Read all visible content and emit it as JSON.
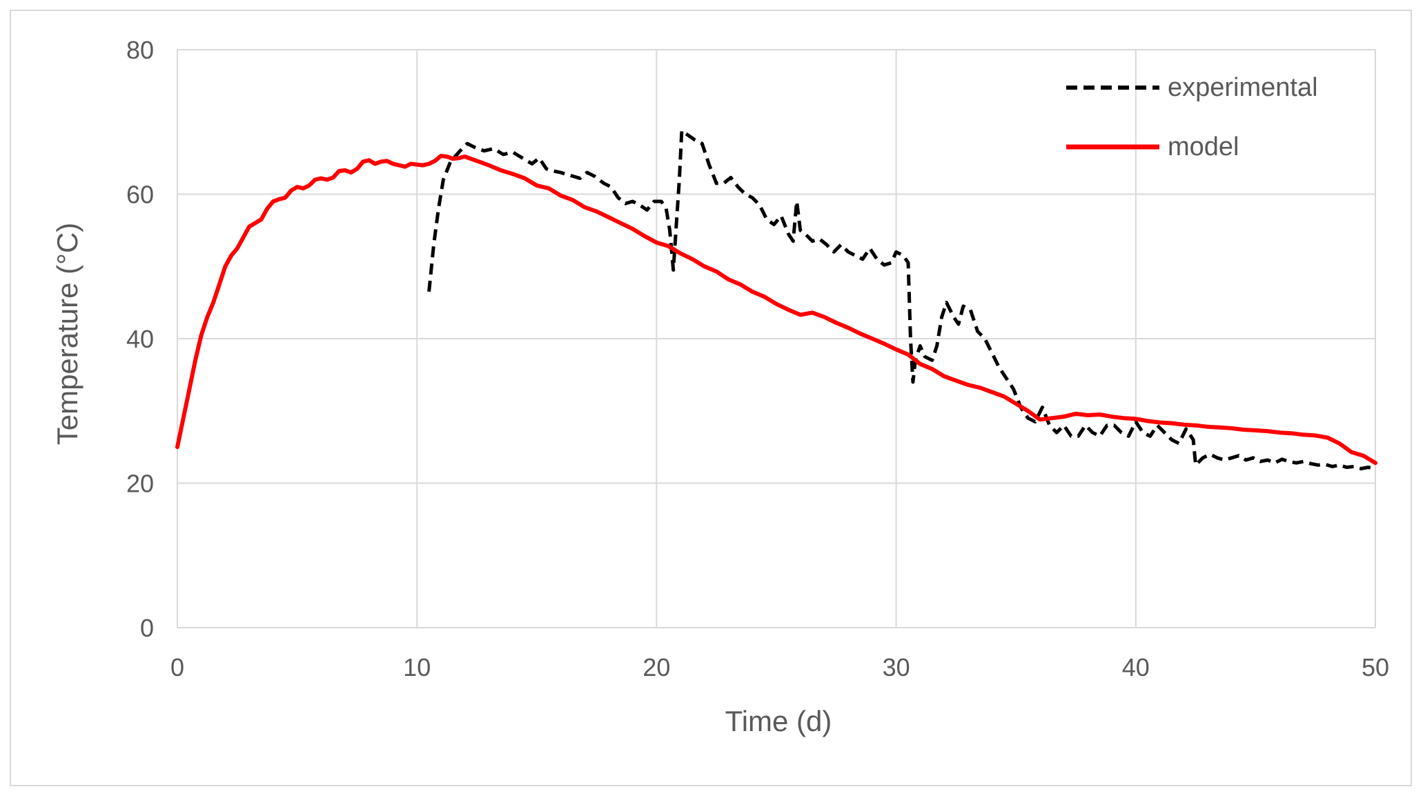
{
  "chart_data": {
    "type": "line",
    "title": "",
    "xlabel": "Time (d)",
    "ylabel": "Temperature (°C)",
    "xlim": [
      0,
      50
    ],
    "ylim": [
      0,
      80
    ],
    "xticks": [
      "0",
      "10",
      "20",
      "30",
      "40",
      "50"
    ],
    "yticks": [
      "0",
      "20",
      "40",
      "60",
      "80"
    ],
    "grid": true,
    "legend_position": "top-right",
    "series": [
      {
        "name": "experimental",
        "color": "#000000",
        "style": "dashed",
        "points": [
          [
            10.5,
            46.5
          ],
          [
            10.7,
            53
          ],
          [
            10.9,
            58
          ],
          [
            11.1,
            62
          ],
          [
            11.4,
            64.5
          ],
          [
            11.8,
            66
          ],
          [
            12.1,
            67
          ],
          [
            12.4,
            66.5
          ],
          [
            12.8,
            66
          ],
          [
            13.2,
            66.3
          ],
          [
            13.6,
            65.5
          ],
          [
            14.0,
            65.8
          ],
          [
            14.4,
            65
          ],
          [
            14.8,
            64.2
          ],
          [
            15.1,
            65
          ],
          [
            15.4,
            63.5
          ],
          [
            15.7,
            63.2
          ],
          [
            16.0,
            63
          ],
          [
            16.4,
            62.6
          ],
          [
            16.8,
            62.2
          ],
          [
            17.1,
            63
          ],
          [
            17.4,
            62.5
          ],
          [
            17.8,
            61.5
          ],
          [
            18.1,
            61
          ],
          [
            18.4,
            59.5
          ],
          [
            18.7,
            58.7
          ],
          [
            19.0,
            59
          ],
          [
            19.3,
            58.5
          ],
          [
            19.6,
            57.8
          ],
          [
            19.9,
            59
          ],
          [
            20.2,
            59
          ],
          [
            20.4,
            58
          ],
          [
            20.55,
            55
          ],
          [
            20.7,
            49.5
          ],
          [
            20.85,
            57
          ],
          [
            20.95,
            62
          ],
          [
            21.05,
            68.8
          ],
          [
            21.3,
            68.2
          ],
          [
            21.6,
            67.5
          ],
          [
            21.9,
            67
          ],
          [
            22.2,
            64
          ],
          [
            22.5,
            61.5
          ],
          [
            22.8,
            61.5
          ],
          [
            23.1,
            62.3
          ],
          [
            23.4,
            61
          ],
          [
            23.7,
            60
          ],
          [
            24.0,
            59.5
          ],
          [
            24.3,
            58.5
          ],
          [
            24.6,
            56.5
          ],
          [
            24.9,
            55.8
          ],
          [
            25.2,
            57
          ],
          [
            25.5,
            54.5
          ],
          [
            25.7,
            53.5
          ],
          [
            25.85,
            59
          ],
          [
            26.0,
            55
          ],
          [
            26.2,
            54.5
          ],
          [
            26.5,
            53.5
          ],
          [
            26.8,
            53.8
          ],
          [
            27.1,
            53
          ],
          [
            27.4,
            52
          ],
          [
            27.7,
            53
          ],
          [
            28.0,
            52
          ],
          [
            28.3,
            51.5
          ],
          [
            28.6,
            51
          ],
          [
            28.9,
            52.5
          ],
          [
            29.2,
            51
          ],
          [
            29.5,
            50.2
          ],
          [
            29.8,
            50.5
          ],
          [
            30.0,
            52
          ],
          [
            30.3,
            51.5
          ],
          [
            30.5,
            50.5
          ],
          [
            30.6,
            40
          ],
          [
            30.7,
            34
          ],
          [
            30.8,
            37
          ],
          [
            31.0,
            39
          ],
          [
            31.2,
            37.5
          ],
          [
            31.5,
            37
          ],
          [
            31.7,
            39
          ],
          [
            31.9,
            43
          ],
          [
            32.1,
            45
          ],
          [
            32.4,
            43
          ],
          [
            32.6,
            42
          ],
          [
            32.8,
            44.5
          ],
          [
            33.1,
            44
          ],
          [
            33.4,
            41
          ],
          [
            33.7,
            40
          ],
          [
            34.0,
            38
          ],
          [
            34.3,
            36
          ],
          [
            34.6,
            34.5
          ],
          [
            34.9,
            33
          ],
          [
            35.2,
            30.5
          ],
          [
            35.5,
            29
          ],
          [
            35.8,
            28.5
          ],
          [
            36.1,
            30.5
          ],
          [
            36.4,
            28
          ],
          [
            36.7,
            27
          ],
          [
            37.0,
            28
          ],
          [
            37.3,
            26.5
          ],
          [
            37.6,
            26.5
          ],
          [
            37.9,
            28
          ],
          [
            38.2,
            27
          ],
          [
            38.5,
            26.5
          ],
          [
            38.8,
            28
          ],
          [
            39.1,
            28
          ],
          [
            39.4,
            27
          ],
          [
            39.7,
            26.5
          ],
          [
            40.0,
            28.5
          ],
          [
            40.3,
            27
          ],
          [
            40.6,
            26.5
          ],
          [
            40.9,
            28
          ],
          [
            41.2,
            27
          ],
          [
            41.5,
            26
          ],
          [
            41.8,
            25.5
          ],
          [
            42.1,
            27.5
          ],
          [
            42.4,
            26
          ],
          [
            42.5,
            22.5
          ],
          [
            42.8,
            23.5
          ],
          [
            43.1,
            24
          ],
          [
            43.4,
            23.5
          ],
          [
            43.7,
            23.2
          ],
          [
            44.0,
            23.5
          ],
          [
            44.3,
            23.8
          ],
          [
            44.6,
            23.2
          ],
          [
            44.9,
            23.5
          ],
          [
            45.2,
            23
          ],
          [
            45.5,
            23.2
          ],
          [
            45.8,
            22.8
          ],
          [
            46.1,
            23.3
          ],
          [
            46.4,
            23
          ],
          [
            46.7,
            22.8
          ],
          [
            47.0,
            23
          ],
          [
            47.3,
            22.7
          ],
          [
            47.6,
            22.5
          ],
          [
            47.9,
            22.6
          ],
          [
            48.2,
            22.3
          ],
          [
            48.5,
            22.5
          ],
          [
            48.8,
            22.2
          ],
          [
            49.1,
            22.3
          ],
          [
            49.4,
            22
          ],
          [
            49.7,
            22.2
          ],
          [
            50.0,
            22
          ]
        ]
      },
      {
        "name": "model",
        "color": "#ff0000",
        "style": "solid",
        "points": [
          [
            0,
            25
          ],
          [
            0.25,
            29
          ],
          [
            0.5,
            33
          ],
          [
            0.75,
            37
          ],
          [
            1.0,
            40.5
          ],
          [
            1.25,
            43
          ],
          [
            1.5,
            45
          ],
          [
            1.75,
            47.5
          ],
          [
            2.0,
            50
          ],
          [
            2.25,
            51.5
          ],
          [
            2.5,
            52.5
          ],
          [
            2.75,
            54
          ],
          [
            3.0,
            55.5
          ],
          [
            3.25,
            56
          ],
          [
            3.5,
            56.5
          ],
          [
            3.75,
            58
          ],
          [
            4.0,
            59
          ],
          [
            4.25,
            59.3
          ],
          [
            4.5,
            59.5
          ],
          [
            4.75,
            60.5
          ],
          [
            5.0,
            61
          ],
          [
            5.25,
            60.8
          ],
          [
            5.5,
            61.2
          ],
          [
            5.75,
            62
          ],
          [
            6.0,
            62.2
          ],
          [
            6.25,
            62
          ],
          [
            6.5,
            62.3
          ],
          [
            6.75,
            63.2
          ],
          [
            7.0,
            63.3
          ],
          [
            7.25,
            63
          ],
          [
            7.5,
            63.5
          ],
          [
            7.75,
            64.5
          ],
          [
            8.0,
            64.7
          ],
          [
            8.25,
            64.2
          ],
          [
            8.5,
            64.5
          ],
          [
            8.75,
            64.6
          ],
          [
            9.0,
            64.2
          ],
          [
            9.25,
            64
          ],
          [
            9.5,
            63.8
          ],
          [
            9.75,
            64.2
          ],
          [
            10.0,
            64.1
          ],
          [
            10.25,
            64
          ],
          [
            10.5,
            64.2
          ],
          [
            10.75,
            64.6
          ],
          [
            11.0,
            65.3
          ],
          [
            11.25,
            65.2
          ],
          [
            11.5,
            64.9
          ],
          [
            11.75,
            65
          ],
          [
            12.0,
            65.2
          ],
          [
            12.5,
            64.6
          ],
          [
            13.0,
            64
          ],
          [
            13.5,
            63.3
          ],
          [
            14.0,
            62.8
          ],
          [
            14.5,
            62.2
          ],
          [
            15.0,
            61.2
          ],
          [
            15.5,
            60.8
          ],
          [
            16.0,
            59.8
          ],
          [
            16.5,
            59.2
          ],
          [
            17.0,
            58.2
          ],
          [
            17.5,
            57.6
          ],
          [
            18.0,
            56.8
          ],
          [
            18.5,
            56
          ],
          [
            19.0,
            55.2
          ],
          [
            19.5,
            54.2
          ],
          [
            20.0,
            53.3
          ],
          [
            20.5,
            52.8
          ],
          [
            21.0,
            51.8
          ],
          [
            21.5,
            51
          ],
          [
            22.0,
            50
          ],
          [
            22.5,
            49.3
          ],
          [
            23.0,
            48.2
          ],
          [
            23.5,
            47.5
          ],
          [
            24.0,
            46.5
          ],
          [
            24.5,
            45.8
          ],
          [
            25.0,
            44.8
          ],
          [
            25.5,
            44
          ],
          [
            26.0,
            43.3
          ],
          [
            26.5,
            43.6
          ],
          [
            27.0,
            43
          ],
          [
            27.5,
            42.2
          ],
          [
            28.0,
            41.5
          ],
          [
            28.5,
            40.7
          ],
          [
            29.0,
            40
          ],
          [
            29.5,
            39.3
          ],
          [
            30.0,
            38.5
          ],
          [
            30.5,
            37.8
          ],
          [
            31.0,
            36.5
          ],
          [
            31.5,
            35.8
          ],
          [
            32.0,
            34.8
          ],
          [
            32.5,
            34.2
          ],
          [
            33.0,
            33.6
          ],
          [
            33.5,
            33.2
          ],
          [
            34.0,
            32.6
          ],
          [
            34.5,
            32
          ],
          [
            35.0,
            31
          ],
          [
            35.5,
            30
          ],
          [
            36.0,
            28.8
          ],
          [
            36.5,
            29
          ],
          [
            37.0,
            29.2
          ],
          [
            37.5,
            29.6
          ],
          [
            38.0,
            29.4
          ],
          [
            38.5,
            29.5
          ],
          [
            39.0,
            29.2
          ],
          [
            39.5,
            29
          ],
          [
            40.0,
            28.9
          ],
          [
            40.5,
            28.6
          ],
          [
            41.0,
            28.4
          ],
          [
            41.5,
            28.3
          ],
          [
            42.0,
            28.1
          ],
          [
            42.5,
            28
          ],
          [
            43.0,
            27.8
          ],
          [
            43.5,
            27.7
          ],
          [
            44.0,
            27.6
          ],
          [
            44.5,
            27.4
          ],
          [
            45.0,
            27.3
          ],
          [
            45.5,
            27.2
          ],
          [
            46.0,
            27
          ],
          [
            46.5,
            26.9
          ],
          [
            47.0,
            26.7
          ],
          [
            47.5,
            26.6
          ],
          [
            48.0,
            26.3
          ],
          [
            48.5,
            25.5
          ],
          [
            49.0,
            24.3
          ],
          [
            49.5,
            23.8
          ],
          [
            50.0,
            22.8
          ]
        ]
      }
    ]
  }
}
